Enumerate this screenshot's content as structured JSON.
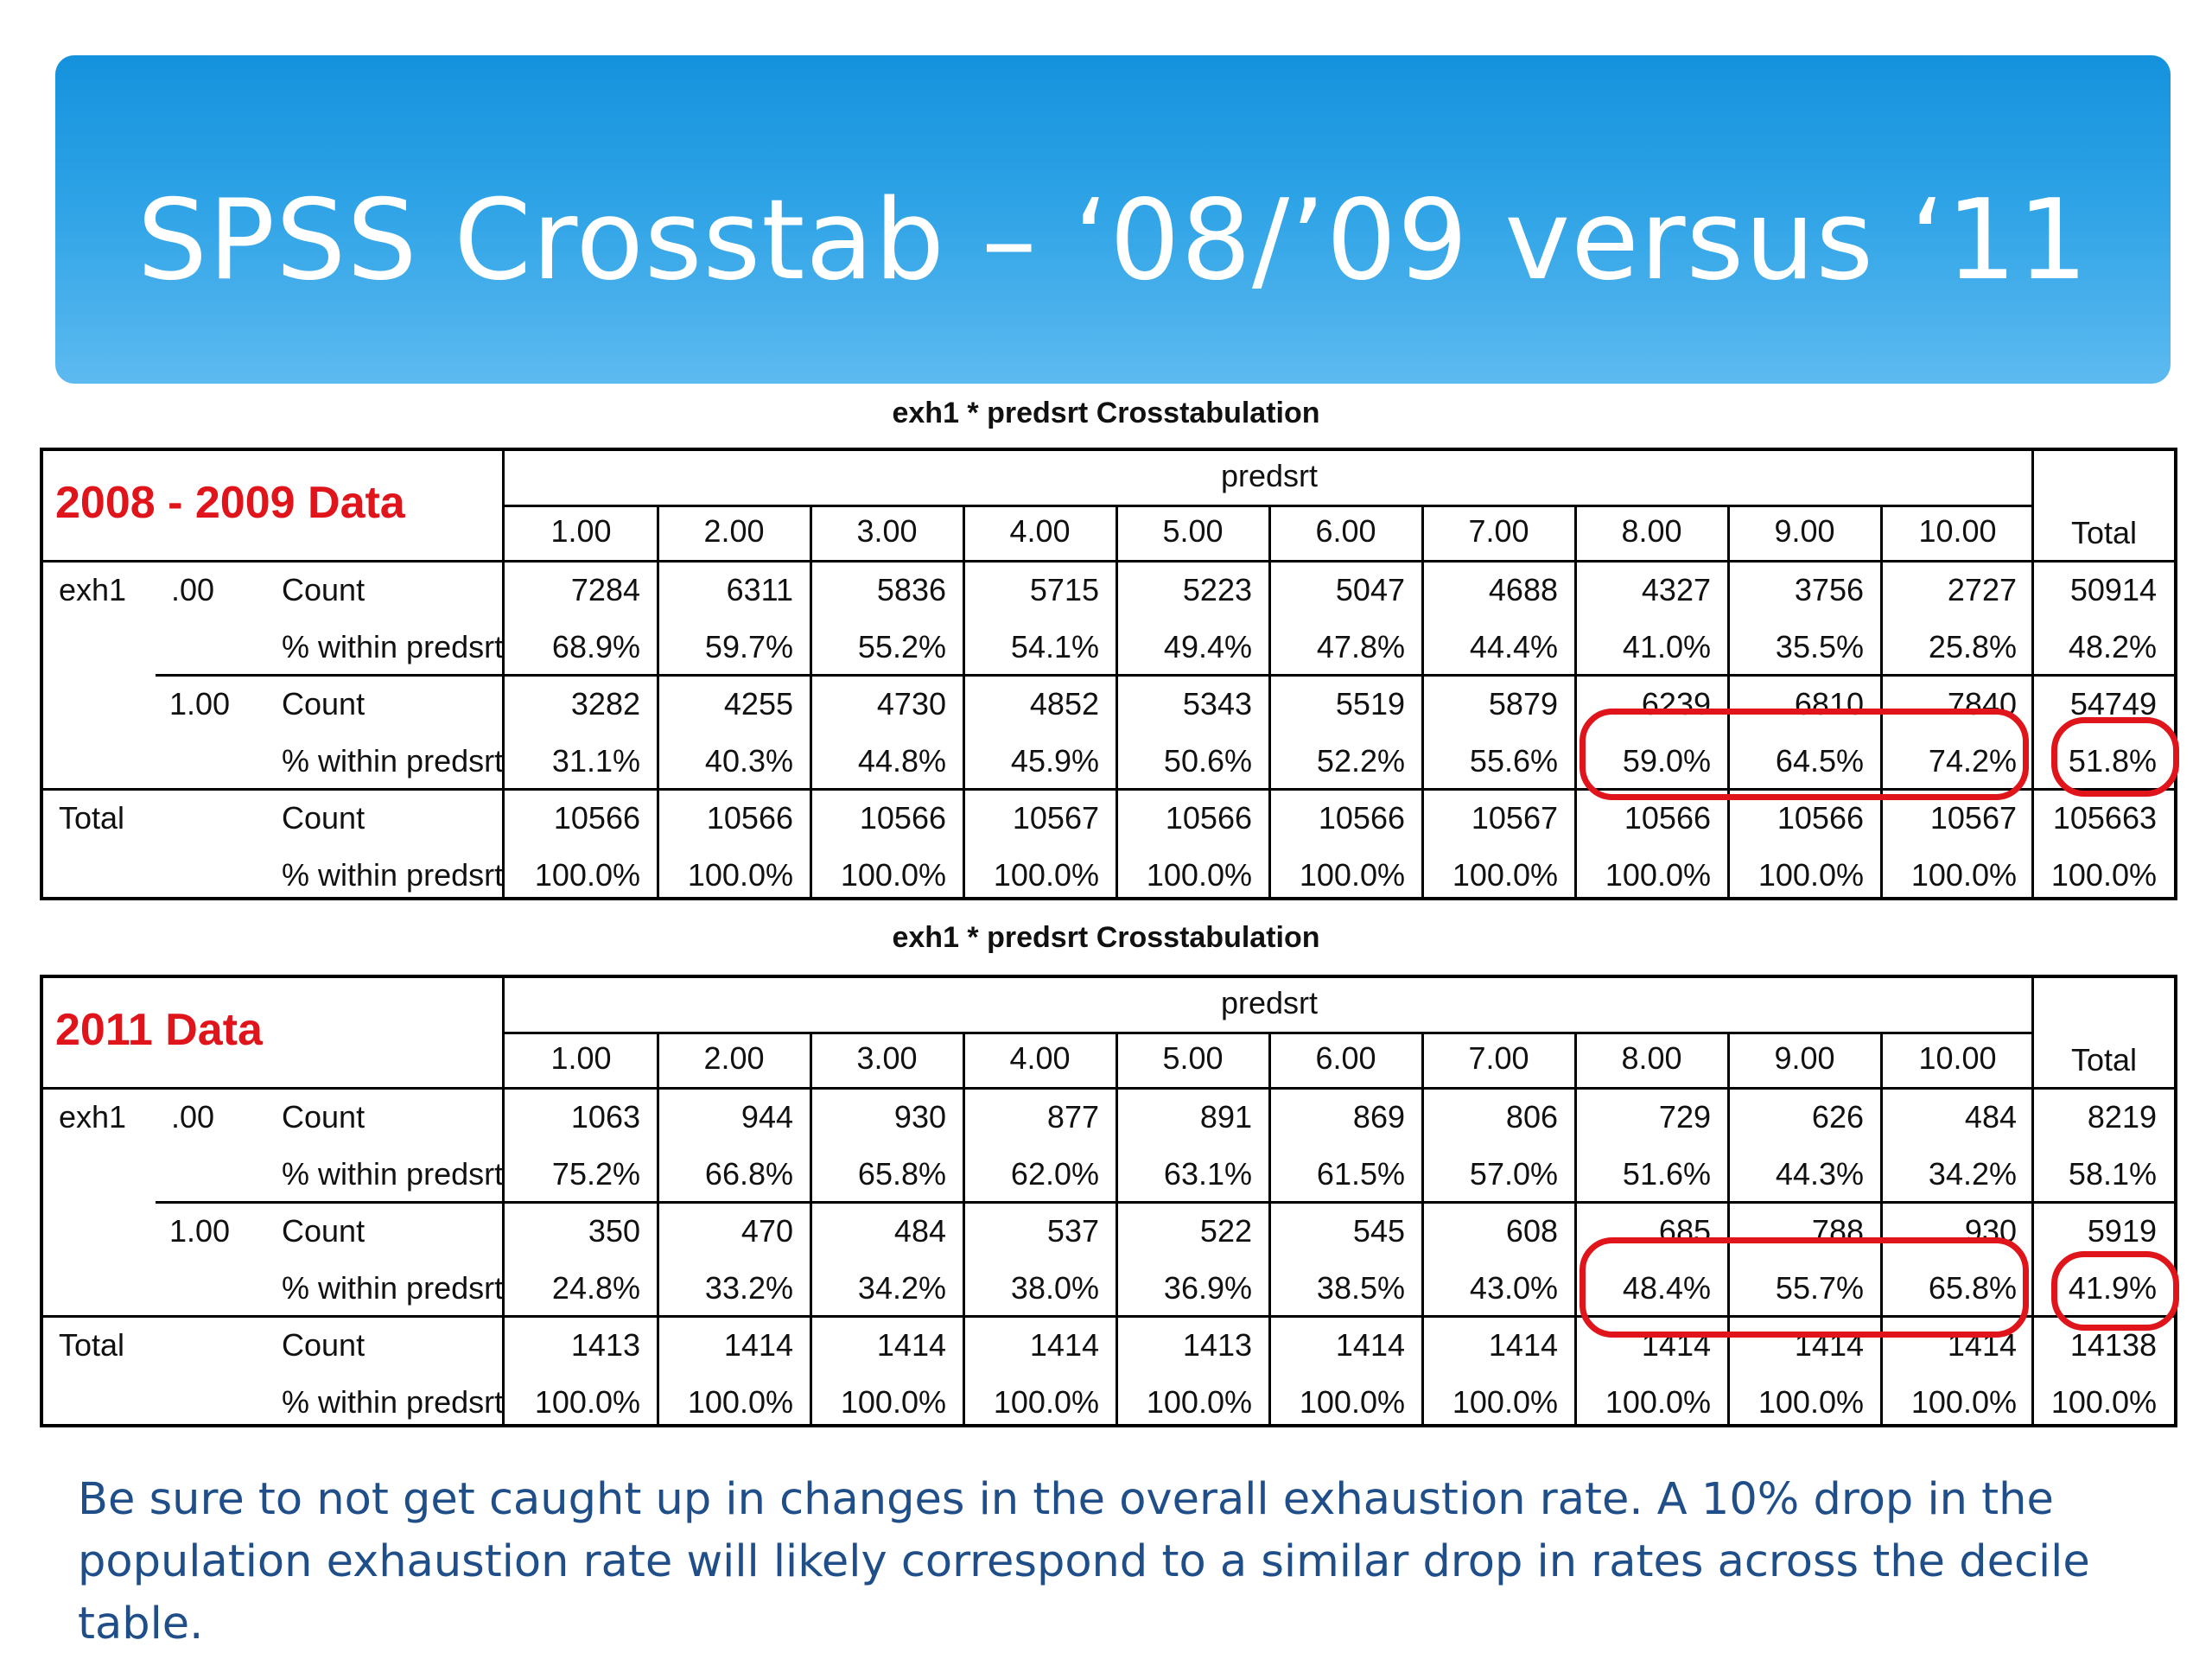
{
  "slide": {
    "title": "SPSS Crosstab – ‘08/’09 versus ‘11",
    "footnote_line1": "Be sure to not get caught up in changes in the overall exhaustion rate. A 10% drop in the",
    "footnote_line2": "population exhaustion rate will likely correspond to a similar drop in rates across the decile table."
  },
  "colors": {
    "banner": "#2ea3e6",
    "highlight": "#e0151b",
    "footnote": "#1f4e89"
  },
  "tables": [
    {
      "caption": "exh1 * predsrt Crosstabulation",
      "label": "2008 - 2009 Data",
      "spanner": "predsrt",
      "columns": [
        "1.00",
        "2.00",
        "3.00",
        "4.00",
        "5.00",
        "6.00",
        "7.00",
        "8.00",
        "9.00",
        "10.00",
        "Total"
      ],
      "row_group1": "exh1",
      "row_total_label": "Total",
      "rows": [
        {
          "g1": "exh1",
          "g2": ".00",
          "stat": "Count",
          "values": [
            "7284",
            "6311",
            "5836",
            "5715",
            "5223",
            "5047",
            "4688",
            "4327",
            "3756",
            "2727",
            "50914"
          ]
        },
        {
          "g1": "",
          "g2": "",
          "stat": "% within predsrt",
          "values": [
            "68.9%",
            "59.7%",
            "55.2%",
            "54.1%",
            "49.4%",
            "47.8%",
            "44.4%",
            "41.0%",
            "35.5%",
            "25.8%",
            "48.2%"
          ]
        },
        {
          "g1": "",
          "g2": "1.00",
          "stat": "Count",
          "values": [
            "3282",
            "4255",
            "4730",
            "4852",
            "5343",
            "5519",
            "5879",
            "6239",
            "6810",
            "7840",
            "54749"
          ]
        },
        {
          "g1": "",
          "g2": "",
          "stat": "% within predsrt",
          "values": [
            "31.1%",
            "40.3%",
            "44.8%",
            "45.9%",
            "50.6%",
            "52.2%",
            "55.6%",
            "59.0%",
            "64.5%",
            "74.2%",
            "51.8%"
          ]
        },
        {
          "g1": "Total",
          "g2": "",
          "stat": "Count",
          "values": [
            "10566",
            "10566",
            "10566",
            "10567",
            "10566",
            "10566",
            "10567",
            "10566",
            "10566",
            "10567",
            "105663"
          ]
        },
        {
          "g1": "",
          "g2": "",
          "stat": "% within predsrt",
          "values": [
            "100.0%",
            "100.0%",
            "100.0%",
            "100.0%",
            "100.0%",
            "100.0%",
            "100.0%",
            "100.0%",
            "100.0%",
            "100.0%",
            "100.0%"
          ]
        }
      ]
    },
    {
      "caption": "exh1 * predsrt Crosstabulation",
      "label": "2011 Data",
      "spanner": "predsrt",
      "columns": [
        "1.00",
        "2.00",
        "3.00",
        "4.00",
        "5.00",
        "6.00",
        "7.00",
        "8.00",
        "9.00",
        "10.00",
        "Total"
      ],
      "rows": [
        {
          "g1": "exh1",
          "g2": ".00",
          "stat": "Count",
          "values": [
            "1063",
            "944",
            "930",
            "877",
            "891",
            "869",
            "806",
            "729",
            "626",
            "484",
            "8219"
          ]
        },
        {
          "g1": "",
          "g2": "",
          "stat": "% within predsrt",
          "values": [
            "75.2%",
            "66.8%",
            "65.8%",
            "62.0%",
            "63.1%",
            "61.5%",
            "57.0%",
            "51.6%",
            "44.3%",
            "34.2%",
            "58.1%"
          ]
        },
        {
          "g1": "",
          "g2": "1.00",
          "stat": "Count",
          "values": [
            "350",
            "470",
            "484",
            "537",
            "522",
            "545",
            "608",
            "685",
            "788",
            "930",
            "5919"
          ]
        },
        {
          "g1": "",
          "g2": "",
          "stat": "% within predsrt",
          "values": [
            "24.8%",
            "33.2%",
            "34.2%",
            "38.0%",
            "36.9%",
            "38.5%",
            "43.0%",
            "48.4%",
            "55.7%",
            "65.8%",
            "41.9%"
          ]
        },
        {
          "g1": "Total",
          "g2": "",
          "stat": "Count",
          "values": [
            "1413",
            "1414",
            "1414",
            "1414",
            "1413",
            "1414",
            "1414",
            "1414",
            "1414",
            "1414",
            "14138"
          ]
        },
        {
          "g1": "",
          "g2": "",
          "stat": "% within predsrt",
          "values": [
            "100.0%",
            "100.0%",
            "100.0%",
            "100.0%",
            "100.0%",
            "100.0%",
            "100.0%",
            "100.0%",
            "100.0%",
            "100.0%",
            "100.0%"
          ]
        }
      ]
    }
  ]
}
